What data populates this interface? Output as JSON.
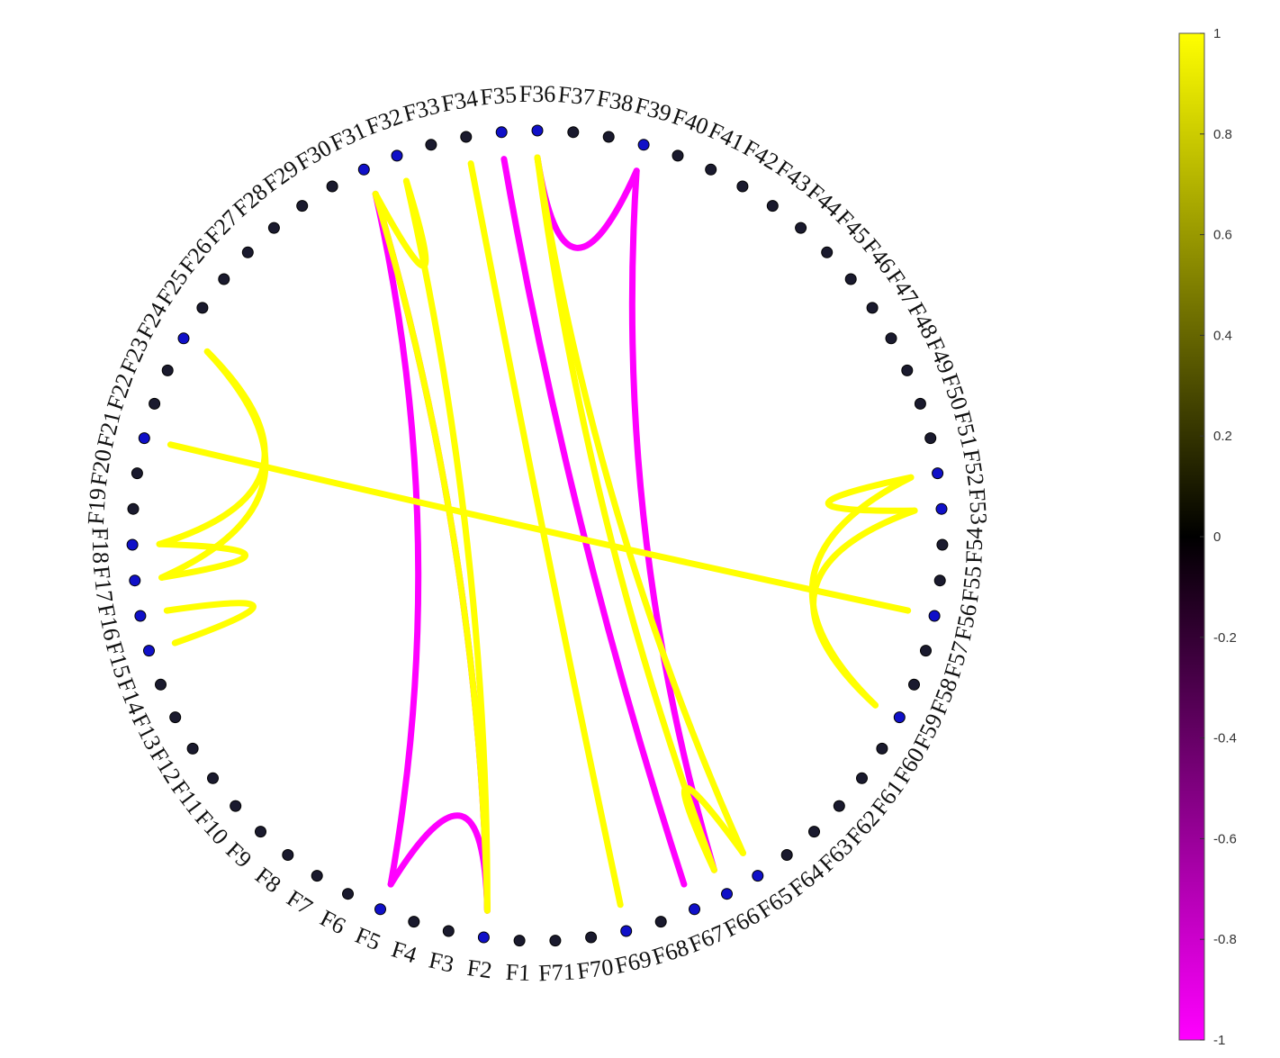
{
  "chart_data": {
    "type": "connectogram",
    "nodes": [
      "F1",
      "F2",
      "F3",
      "F4",
      "F5",
      "F6",
      "F7",
      "F8",
      "F9",
      "F10",
      "F11",
      "F12",
      "F13",
      "F14",
      "F15",
      "F16",
      "F17",
      "F18",
      "F19",
      "F20",
      "F21",
      "F22",
      "F23",
      "F24",
      "F25",
      "F26",
      "F27",
      "F28",
      "F29",
      "F30",
      "F31",
      "F32",
      "F33",
      "F34",
      "F35",
      "F36",
      "F37",
      "F38",
      "F39",
      "F40",
      "F41",
      "F42",
      "F43",
      "F44",
      "F45",
      "F46",
      "F47",
      "F48",
      "F49",
      "F50",
      "F51",
      "F52",
      "F53",
      "F54",
      "F55",
      "F56",
      "F57",
      "F58",
      "F59",
      "F60",
      "F61",
      "F62",
      "F63",
      "F64",
      "F65",
      "F66",
      "F67",
      "F68",
      "F69",
      "F70",
      "F71"
    ],
    "highlighted_nodes": [
      "F2",
      "F5",
      "F15",
      "F16",
      "F17",
      "F18",
      "F21",
      "F24",
      "F31",
      "F32",
      "F35",
      "F36",
      "F39",
      "F52",
      "F53",
      "F56",
      "F59",
      "F65",
      "F66",
      "F67",
      "F69"
    ],
    "edges": [
      {
        "source": "F39",
        "target": "F36",
        "value": -1
      },
      {
        "source": "F39",
        "target": "F66",
        "value": -1
      },
      {
        "source": "F35",
        "target": "F67",
        "value": -1
      },
      {
        "source": "F31",
        "target": "F2",
        "value": -1
      },
      {
        "source": "F31",
        "target": "F5",
        "value": -1
      },
      {
        "source": "F2",
        "target": "F5",
        "value": -1
      },
      {
        "source": "F36",
        "target": "F65",
        "value": 1
      },
      {
        "source": "F36",
        "target": "F66",
        "value": 1
      },
      {
        "source": "F34",
        "target": "F69",
        "value": 1
      },
      {
        "source": "F32",
        "target": "F31",
        "value": 1
      },
      {
        "source": "F32",
        "target": "F2",
        "value": 1
      },
      {
        "source": "F31",
        "target": "F2",
        "value": 1
      },
      {
        "source": "F52",
        "target": "F53",
        "value": 1
      },
      {
        "source": "F52",
        "target": "F59",
        "value": 1
      },
      {
        "source": "F53",
        "target": "F59",
        "value": 1
      },
      {
        "source": "F56",
        "target": "F21",
        "value": 1
      },
      {
        "source": "F24",
        "target": "F18",
        "value": 1
      },
      {
        "source": "F24",
        "target": "F17",
        "value": 1
      },
      {
        "source": "F18",
        "target": "F17",
        "value": 1
      },
      {
        "source": "F16",
        "target": "F15",
        "value": 1
      },
      {
        "source": "F65",
        "target": "F66",
        "value": 1
      }
    ],
    "colorbar": {
      "range": [
        -1,
        1
      ],
      "ticks": [
        "1",
        "0.8",
        "0.6",
        "0.4",
        "0.2",
        "0",
        "-0.2",
        "-0.4",
        "-0.6",
        "-0.8",
        "-1"
      ],
      "colors": {
        "negative": "#ff00ff",
        "zero": "#000000",
        "positive": "#ffff00"
      }
    }
  },
  "colors": {
    "node": "#1a1a2e",
    "node_highlight": "#1010c8",
    "negative_edge": "#ff00ff",
    "positive_edge": "#ffff00"
  }
}
